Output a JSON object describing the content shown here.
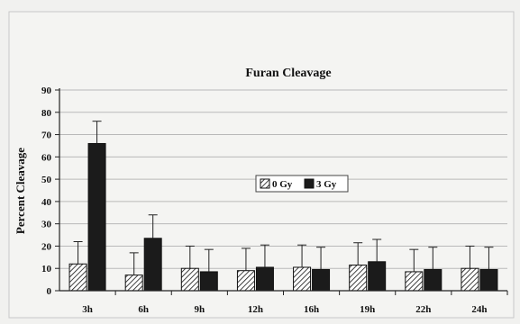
{
  "chart_data": {
    "type": "bar",
    "title": "Furan Cleavage",
    "xlabel": "",
    "ylabel": "Percent Cleavage",
    "ylim": [
      0,
      90
    ],
    "yticks": [
      0,
      10,
      20,
      30,
      40,
      50,
      60,
      70,
      80,
      90
    ],
    "grid": true,
    "legend_position": "center",
    "categories": [
      "3h",
      "6h",
      "9h",
      "12h",
      "16h",
      "19h",
      "22h",
      "24h"
    ],
    "series": [
      {
        "name": "0 Gy",
        "pattern": "hatched",
        "color": "#ffffff",
        "values": [
          12,
          7,
          10,
          9,
          10.5,
          11.5,
          8.5,
          10
        ],
        "errors": [
          10,
          10,
          10,
          10,
          10,
          10,
          10,
          10
        ]
      },
      {
        "name": "3 Gy",
        "pattern": "solid",
        "color": "#1b1b1b",
        "values": [
          66,
          23.5,
          8.5,
          10.5,
          9.5,
          13,
          9.5,
          9.5
        ],
        "errors": [
          10,
          10.5,
          10,
          10,
          10,
          10,
          10,
          10
        ]
      }
    ]
  }
}
